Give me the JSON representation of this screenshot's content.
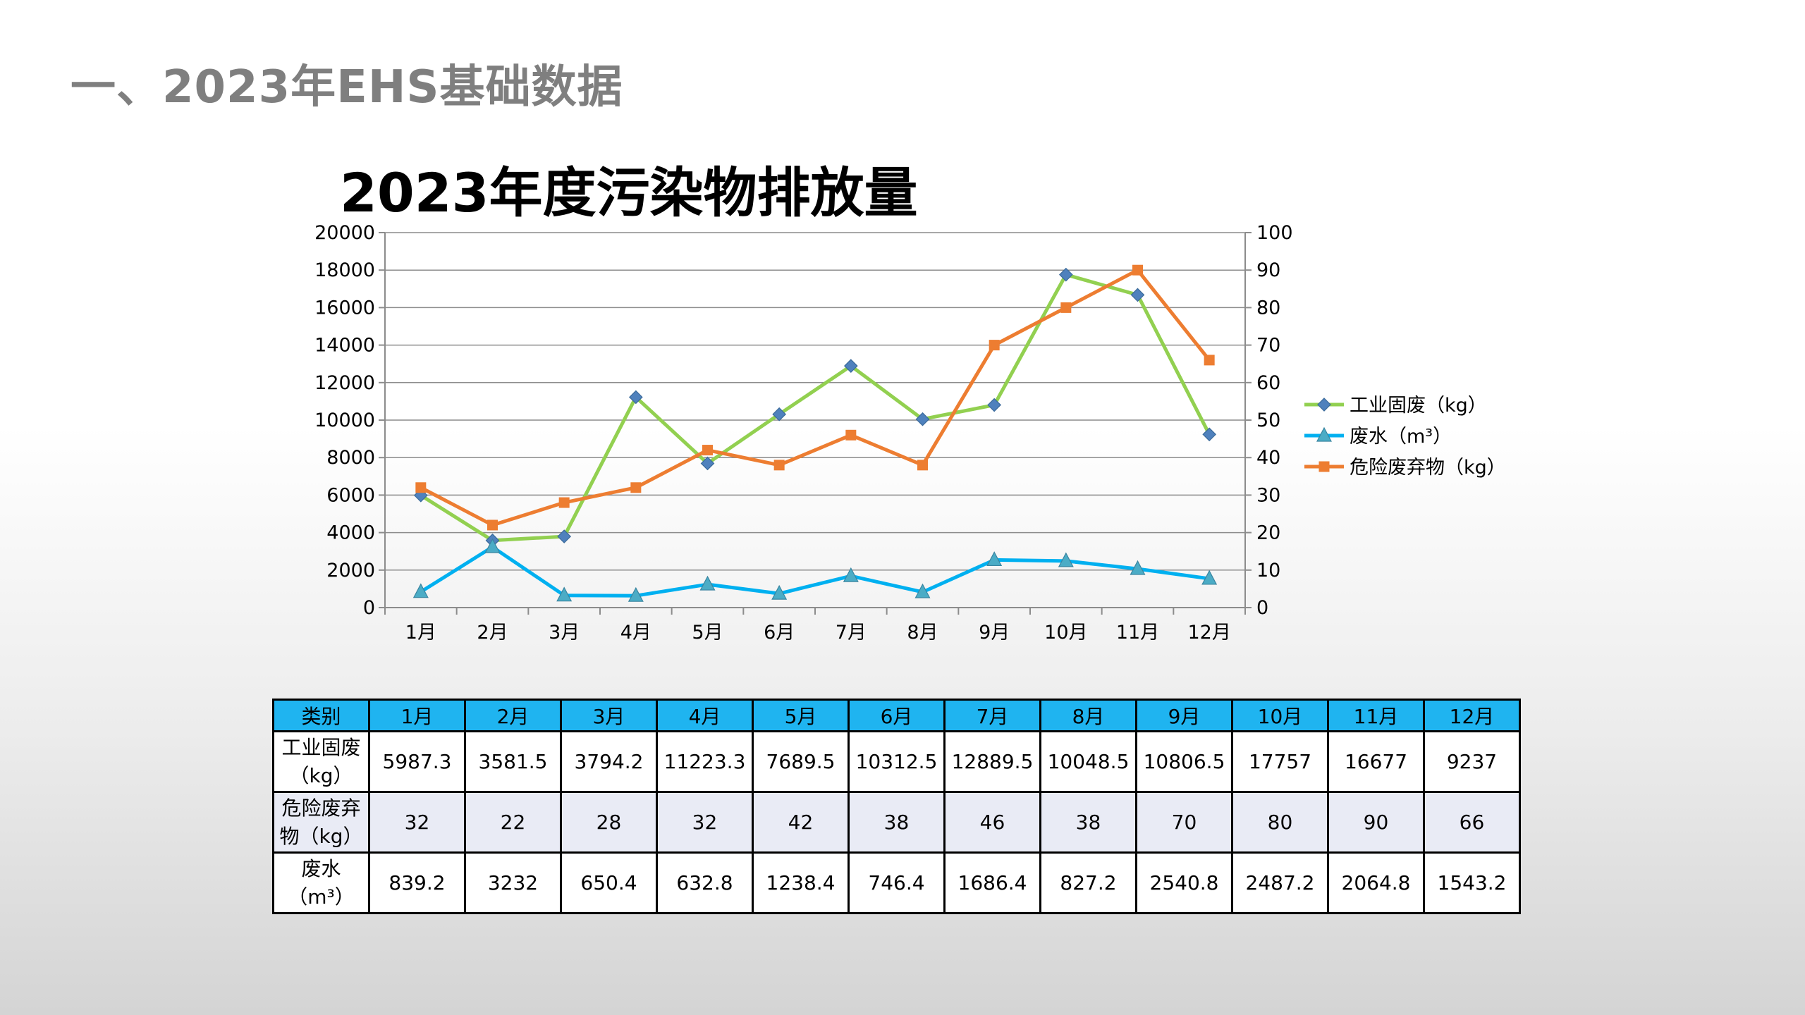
{
  "slide": {
    "title": "一、2023年EHS基础数据"
  },
  "chart_data": {
    "type": "line",
    "title": "2023年度污染物排放量",
    "categories": [
      "1月",
      "2月",
      "3月",
      "4月",
      "5月",
      "6月",
      "7月",
      "8月",
      "9月",
      "10月",
      "11月",
      "12月"
    ],
    "y_left": {
      "min": 0,
      "max": 20000,
      "step": 2000
    },
    "y_right": {
      "min": 0,
      "max": 100,
      "step": 10
    },
    "grid": true,
    "legend_position": "right",
    "series": [
      {
        "name": "工业固废（kg）",
        "axis": "left",
        "color": "#92d050",
        "marker": "diamond",
        "marker_color": "#4f81bd",
        "values": [
          5987.3,
          3581.5,
          3794.2,
          11223.3,
          7689.5,
          10312.5,
          12889.5,
          10048.5,
          10806.5,
          17757,
          16677,
          9237
        ]
      },
      {
        "name": "废水（m³）",
        "axis": "left",
        "color": "#00b0f0",
        "marker": "triangle",
        "marker_color": "#4bacc6",
        "values": [
          839.2,
          3232,
          650.4,
          632.8,
          1238.4,
          746.4,
          1686.4,
          827.2,
          2540.8,
          2487.2,
          2064.8,
          1543.2
        ]
      },
      {
        "name": "危险废弃物（kg）",
        "axis": "right",
        "color": "#ed7d31",
        "marker": "square",
        "marker_color": "#ed7d31",
        "values": [
          32,
          22,
          28,
          32,
          42,
          38,
          46,
          38,
          70,
          80,
          90,
          66
        ]
      }
    ]
  },
  "table": {
    "header": [
      "类别",
      "1月",
      "2月",
      "3月",
      "4月",
      "5月",
      "6月",
      "7月",
      "8月",
      "9月",
      "10月",
      "11月",
      "12月"
    ],
    "rows": [
      {
        "label_lines": [
          "工业固废",
          "（kg）"
        ],
        "cells": [
          "5987.3",
          "3581.5",
          "3794.2",
          "11223.3",
          "7689.5",
          "10312.5",
          "12889.5",
          "10048.5",
          "10806.5",
          "17757",
          "16677",
          "9237"
        ]
      },
      {
        "label_lines": [
          "危险废弃",
          "物（kg）"
        ],
        "cells": [
          "32",
          "22",
          "28",
          "32",
          "42",
          "38",
          "46",
          "38",
          "70",
          "80",
          "90",
          "66"
        ]
      },
      {
        "label_lines": [
          "废水（m³）"
        ],
        "cells": [
          "839.2",
          "3232",
          "650.4",
          "632.8",
          "1238.4",
          "746.4",
          "1686.4",
          "827.2",
          "2540.8",
          "2487.2",
          "2064.8",
          "1543.2"
        ]
      }
    ]
  }
}
